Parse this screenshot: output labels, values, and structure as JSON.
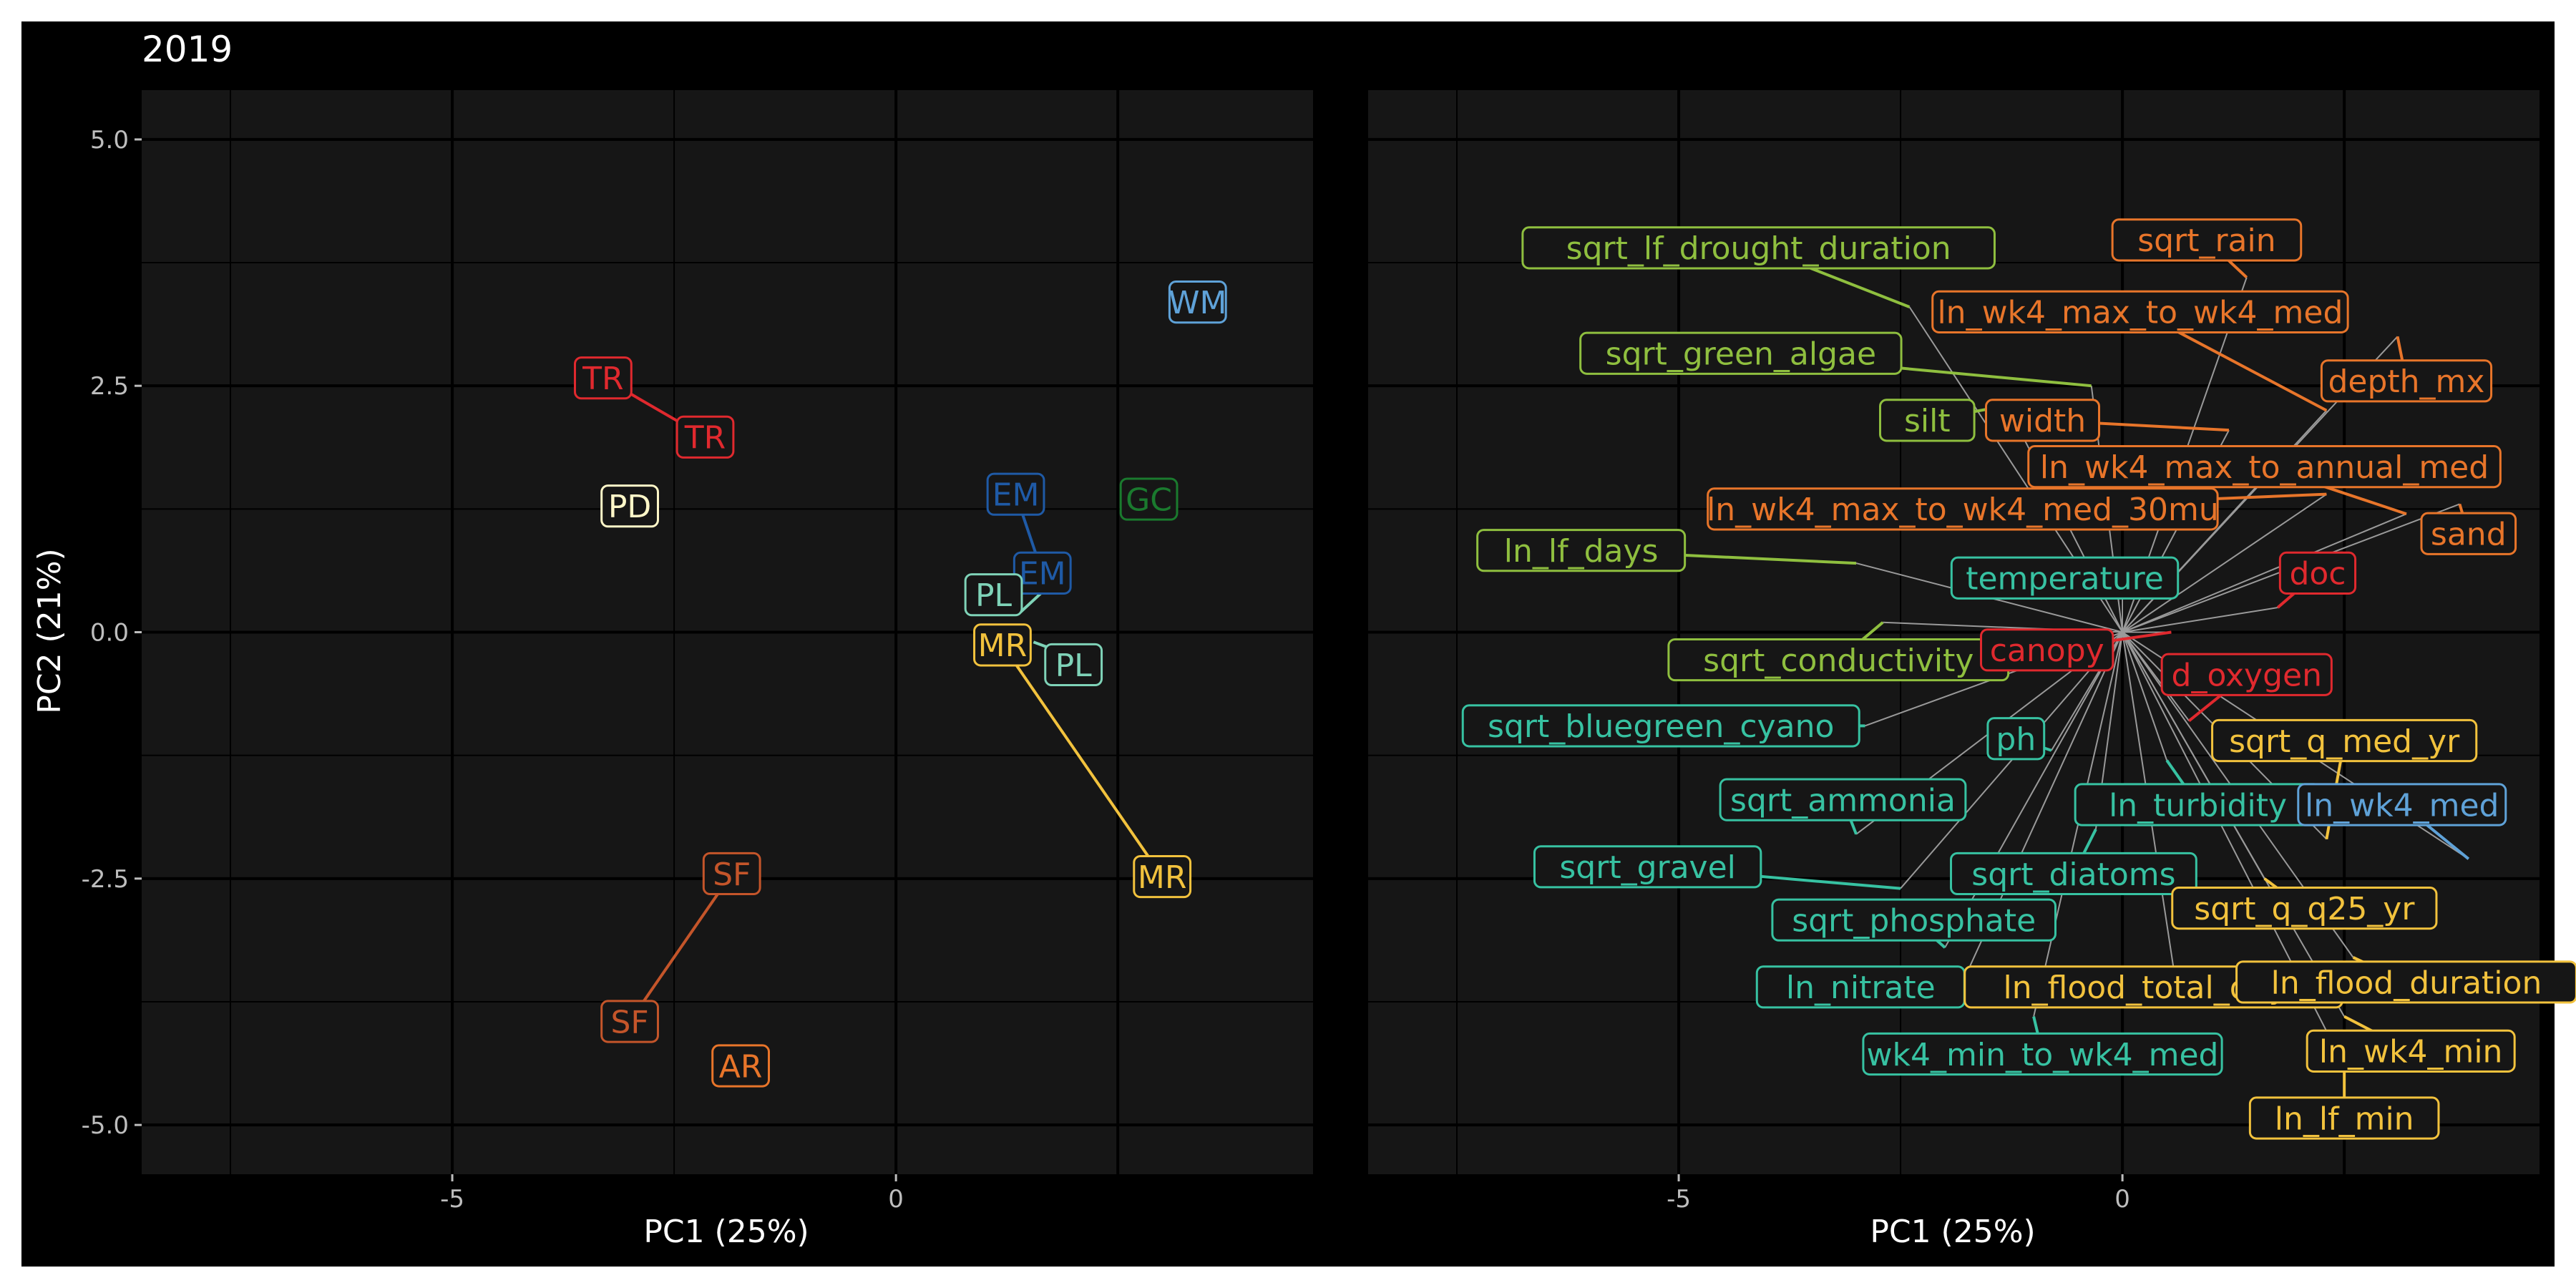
{
  "title": "2019",
  "colors": {
    "background": "#000000",
    "panel": "#161616",
    "grid": "#000000",
    "axis_text": "#bdbdbd",
    "axis_title": "#ffffff",
    "segment_gray": "#9a9a9a"
  },
  "chart_data": [
    {
      "type": "scatter",
      "panel": "left",
      "title": "2019",
      "xlabel": "PC1 (25%)",
      "ylabel": "PC2 (21%)",
      "xlim": [
        -8.5,
        4.7
      ],
      "ylim": [
        -5.5,
        5.5
      ],
      "xticks": [
        -5,
        0
      ],
      "xtick_labels": [
        "-5",
        "0"
      ],
      "yticks": [
        5,
        2.5,
        0,
        -2.5,
        -5
      ],
      "ytick_labels": [
        "5.0",
        "2.5",
        "0.0",
        "-2.5",
        "-5.0"
      ],
      "grid": true,
      "points": [
        {
          "label": "WM",
          "x": 3.4,
          "y": 3.35,
          "color": "#5fa2d8"
        },
        {
          "label": "TR",
          "x": -3.3,
          "y": 2.58,
          "color": "#e0292e"
        },
        {
          "label": "TR",
          "x": -2.15,
          "y": 1.98,
          "color": "#e0292e"
        },
        {
          "label": "PD",
          "x": -3.0,
          "y": 1.28,
          "color": "#fff7c8"
        },
        {
          "label": "EM",
          "x": 1.35,
          "y": 1.4,
          "color": "#1f5aa6"
        },
        {
          "label": "GC",
          "x": 2.85,
          "y": 1.35,
          "color": "#1a7a2e"
        },
        {
          "label": "EM",
          "x": 1.65,
          "y": 0.6,
          "color": "#1f5aa6"
        },
        {
          "label": "PL",
          "x": 1.1,
          "y": 0.38,
          "color": "#7fd3b8"
        },
        {
          "label": "MR",
          "x": 1.2,
          "y": -0.13,
          "color": "#f2c23d"
        },
        {
          "label": "PL",
          "x": 2.0,
          "y": -0.33,
          "color": "#7fd3b8"
        },
        {
          "label": "MR",
          "x": 3.0,
          "y": -2.48,
          "color": "#f2c23d"
        },
        {
          "label": "SF",
          "x": -1.85,
          "y": -2.45,
          "color": "#c4552a"
        },
        {
          "label": "SF",
          "x": -3.0,
          "y": -3.95,
          "color": "#c4552a"
        },
        {
          "label": "AR",
          "x": -1.75,
          "y": -4.4,
          "color": "#e8752a"
        }
      ],
      "segments": [
        {
          "from": [
            -3.3,
            2.58
          ],
          "to": [
            -2.15,
            1.98
          ],
          "color": "#e0292e"
        },
        {
          "from": [
            1.35,
            1.4
          ],
          "to": [
            1.65,
            0.6
          ],
          "color": "#1f5aa6"
        },
        {
          "from": [
            1.2,
            -0.13
          ],
          "to": [
            3.0,
            -2.48
          ],
          "color": "#f2c23d"
        },
        {
          "from": [
            -1.85,
            -2.45
          ],
          "to": [
            -3.0,
            -3.95
          ],
          "color": "#c4552a"
        },
        {
          "from": [
            1.4,
            0.2
          ],
          "to": [
            1.7,
            0.45
          ],
          "color": "#7fd3b8"
        },
        {
          "from": [
            1.55,
            -0.1
          ],
          "to": [
            1.85,
            -0.2
          ],
          "color": "#7fd3b8"
        }
      ]
    },
    {
      "type": "scatter",
      "panel": "right",
      "xlabel": "PC1 (25%)",
      "xlim": [
        -8.5,
        4.7
      ],
      "ylim": [
        -5.5,
        5.5
      ],
      "xticks": [
        -5,
        0
      ],
      "xtick_labels": [
        "-5",
        "0"
      ],
      "grid": true,
      "origin": [
        0,
        0
      ],
      "loadings": [
        {
          "label": "sqrt_lf_drought_duration",
          "x": -4.1,
          "y": 3.9,
          "color": "#8fbf3f",
          "lx": -2.4,
          "ly": 3.3
        },
        {
          "label": "sqrt_green_algae",
          "x": -4.3,
          "y": 2.83,
          "color": "#8fbf3f",
          "lx": -0.35,
          "ly": 2.5
        },
        {
          "label": "silt",
          "x": -2.2,
          "y": 2.15,
          "color": "#8fbf3f",
          "lx": -1.3,
          "ly": 2.3
        },
        {
          "label": "ln_lf_days",
          "x": -6.1,
          "y": 0.83,
          "color": "#8fbf3f",
          "lx": -3.0,
          "ly": 0.7
        },
        {
          "label": "sqrt_conductivity",
          "x": -3.2,
          "y": -0.28,
          "color": "#8fbf3f",
          "lx": -2.7,
          "ly": 0.1
        },
        {
          "label": "sqrt_rain",
          "x": 0.95,
          "y": 3.98,
          "color": "#e8752a",
          "lx": 1.4,
          "ly": 3.6
        },
        {
          "label": "ln_wk4_max_to_wk4_med",
          "x": 0.2,
          "y": 3.25,
          "color": "#e8752a",
          "lx": 2.3,
          "ly": 2.25
        },
        {
          "label": "depth_mx",
          "x": 3.2,
          "y": 2.55,
          "color": "#e8752a",
          "lx": 3.1,
          "ly": 3.0
        },
        {
          "label": "width",
          "x": -0.9,
          "y": 2.15,
          "color": "#e8752a",
          "lx": 1.2,
          "ly": 2.05
        },
        {
          "label": "ln_wk4_max_to_annual_med",
          "x": 1.6,
          "y": 1.68,
          "color": "#e8752a",
          "lx": 3.2,
          "ly": 1.2
        },
        {
          "label": "ln_wk4_max_to_wk4_med_30mu",
          "x": -1.8,
          "y": 1.25,
          "color": "#e8752a",
          "lx": 2.3,
          "ly": 1.4
        },
        {
          "label": "sand",
          "x": 3.9,
          "y": 1.0,
          "color": "#e8752a",
          "lx": 3.8,
          "ly": 1.3
        },
        {
          "label": "temperature",
          "x": -0.65,
          "y": 0.55,
          "color": "#37c2a2",
          "lx": 0.0,
          "ly": 0.4
        },
        {
          "label": "sqrt_bluegreen_cyano",
          "x": -5.2,
          "y": -0.95,
          "color": "#37c2a2",
          "lx": -2.9,
          "ly": -0.95
        },
        {
          "label": "ph",
          "x": -1.2,
          "y": -1.08,
          "color": "#37c2a2",
          "lx": -0.8,
          "ly": -1.2
        },
        {
          "label": "sqrt_ammonia",
          "x": -3.15,
          "y": -1.7,
          "color": "#37c2a2",
          "lx": -3.0,
          "ly": -2.05
        },
        {
          "label": "ln_turbidity",
          "x": 0.85,
          "y": -1.75,
          "color": "#37c2a2",
          "lx": 0.5,
          "ly": -1.3
        },
        {
          "label": "sqrt_gravel",
          "x": -5.35,
          "y": -2.38,
          "color": "#37c2a2",
          "lx": -2.5,
          "ly": -2.6
        },
        {
          "label": "sqrt_diatoms",
          "x": -0.55,
          "y": -2.45,
          "color": "#37c2a2",
          "lx": -0.3,
          "ly": -2.0
        },
        {
          "label": "sqrt_phosphate",
          "x": -2.35,
          "y": -2.92,
          "color": "#37c2a2",
          "lx": -2.0,
          "ly": -3.2
        },
        {
          "label": "ln_nitrate",
          "x": -2.95,
          "y": -3.6,
          "color": "#37c2a2",
          "lx": -1.8,
          "ly": -3.55
        },
        {
          "label": "wk4_min_to_wk4_med",
          "x": -0.9,
          "y": -4.28,
          "color": "#37c2a2",
          "lx": -1.0,
          "ly": -3.9
        },
        {
          "label": "doc",
          "x": 2.2,
          "y": 0.6,
          "color": "#e0292e",
          "lx": 1.75,
          "ly": 0.25
        },
        {
          "label": "canopy",
          "x": -0.85,
          "y": -0.18,
          "color": "#e0292e",
          "lx": 0.55,
          "ly": 0.0
        },
        {
          "label": "d_oxygen",
          "x": 1.4,
          "y": -0.43,
          "color": "#e0292e",
          "lx": 0.75,
          "ly": -0.9
        },
        {
          "label": "sqrt_q_med_yr",
          "x": 2.5,
          "y": -1.1,
          "color": "#f2c23d",
          "lx": 2.3,
          "ly": -2.1
        },
        {
          "label": "ln_wk4_med",
          "x": 3.15,
          "y": -1.75,
          "color": "#5fa2d8",
          "lx": 3.9,
          "ly": -2.3
        },
        {
          "label": "sqrt_q_q25_yr",
          "x": 2.05,
          "y": -2.8,
          "color": "#f2c23d",
          "lx": 1.6,
          "ly": -2.5
        },
        {
          "label": "ln_flood_total_days",
          "x": 0.35,
          "y": -3.6,
          "color": "#f2c23d",
          "lx": 0.6,
          "ly": -3.55
        },
        {
          "label": "ln_flood_duration",
          "x": 3.2,
          "y": -3.55,
          "color": "#f2c23d",
          "lx": 2.6,
          "ly": -3.3
        },
        {
          "label": "ln_wk4_min",
          "x": 3.25,
          "y": -4.25,
          "color": "#f2c23d",
          "lx": 2.5,
          "ly": -3.9
        },
        {
          "label": "ln_lf_min",
          "x": 2.5,
          "y": -4.93,
          "color": "#f2c23d",
          "lx": 2.5,
          "ly": -4.4
        }
      ]
    }
  ]
}
